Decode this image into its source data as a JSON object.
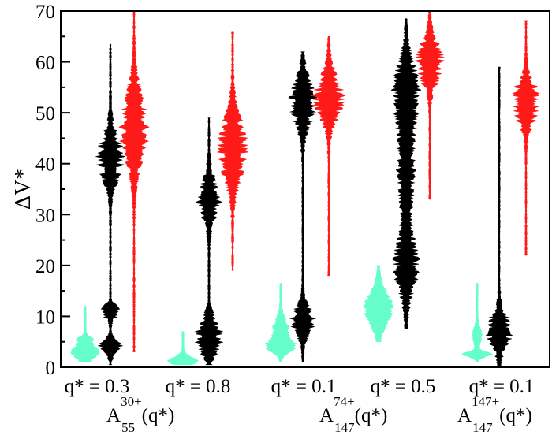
{
  "chart_data": {
    "type": "violin",
    "ylabel": "ΔV*",
    "ylim": [
      0,
      70
    ],
    "yticks": [
      0,
      10,
      20,
      30,
      40,
      50,
      60,
      70
    ],
    "grid": false,
    "colors": {
      "first": "#66ffcc",
      "second": "#000000",
      "third": "#ff1a1a"
    },
    "groups": [
      {
        "label": "q* = 0.3",
        "violins": [
          {
            "color": "#66ffcc",
            "min": 1,
            "max": 12,
            "modes": [
              [
                3,
                1.3,
                1.0
              ],
              [
                5.5,
                0.5,
                0.4
              ]
            ]
          },
          {
            "color": "#000000",
            "min": 0.5,
            "max": 63.5,
            "modes": [
              [
                4,
                1.2,
                0.8
              ],
              [
                11,
                1.2,
                0.6
              ],
              [
                41,
                4,
                0.9
              ]
            ]
          },
          {
            "color": "#ff1a1a",
            "min": 3,
            "max": 70,
            "modes": [
              [
                47,
                6,
                1.0
              ]
            ]
          }
        ]
      },
      {
        "label": "q* = 0.8",
        "violins": [
          {
            "color": "#66ffcc",
            "min": 0.5,
            "max": 7,
            "modes": [
              [
                1.3,
                0.8,
                1.0
              ]
            ]
          },
          {
            "color": "#000000",
            "min": 0.5,
            "max": 49,
            "modes": [
              [
                6,
                3,
                0.9
              ],
              [
                33,
                3.5,
                0.8
              ]
            ]
          },
          {
            "color": "#ff1a1a",
            "min": 19,
            "max": 66,
            "modes": [
              [
                43,
                5.5,
                1.0
              ]
            ]
          }
        ]
      },
      {
        "label": "q* = 0.1",
        "violins": [
          {
            "color": "#66ffcc",
            "min": 1,
            "max": 16.5,
            "modes": [
              [
                4,
                1,
                0.9
              ],
              [
                7,
                2,
                0.6
              ]
            ]
          },
          {
            "color": "#000000",
            "min": 1,
            "max": 62,
            "modes": [
              [
                9,
                2.5,
                0.8
              ],
              [
                52,
                4,
                0.9
              ]
            ]
          },
          {
            "color": "#ff1a1a",
            "min": 18,
            "max": 65,
            "modes": [
              [
                53,
                4,
                1.0
              ]
            ]
          }
        ]
      },
      {
        "label": "q* = 0.5",
        "violins": [
          {
            "color": "#66ffcc",
            "min": 5,
            "max": 20,
            "modes": [
              [
                11.5,
                3,
                1.0
              ]
            ]
          },
          {
            "color": "#000000",
            "min": 7.5,
            "max": 68.5,
            "modes": [
              [
                20,
                5,
                0.8
              ],
              [
                40,
                8,
                0.6
              ],
              [
                55,
                5,
                0.8
              ]
            ]
          },
          {
            "color": "#ff1a1a",
            "min": 33,
            "max": 70,
            "modes": [
              [
                60,
                3.5,
                1.0
              ]
            ]
          }
        ]
      },
      {
        "label": "q* = 0.1",
        "violins": [
          {
            "color": "#66ffcc",
            "min": 1,
            "max": 16.5,
            "modes": [
              [
                2.5,
                0.5,
                1.0
              ],
              [
                6,
                1.5,
                0.3
              ]
            ]
          },
          {
            "color": "#000000",
            "min": 0,
            "max": 59,
            "modes": [
              [
                7,
                3,
                0.9
              ]
            ]
          },
          {
            "color": "#ff1a1a",
            "min": 22,
            "max": 68,
            "modes": [
              [
                52,
                3.5,
                1.0
              ]
            ]
          }
        ]
      }
    ],
    "group_labels": [
      {
        "base": "A",
        "sup": "30+",
        "sub": "55",
        "tail": "(q*)"
      },
      {
        "base": "A",
        "sup": "74+",
        "sub": "147",
        "tail": "(q*)"
      },
      {
        "base": "A",
        "sup": "147+",
        "sub": "147",
        "tail": "(q*)"
      }
    ]
  }
}
